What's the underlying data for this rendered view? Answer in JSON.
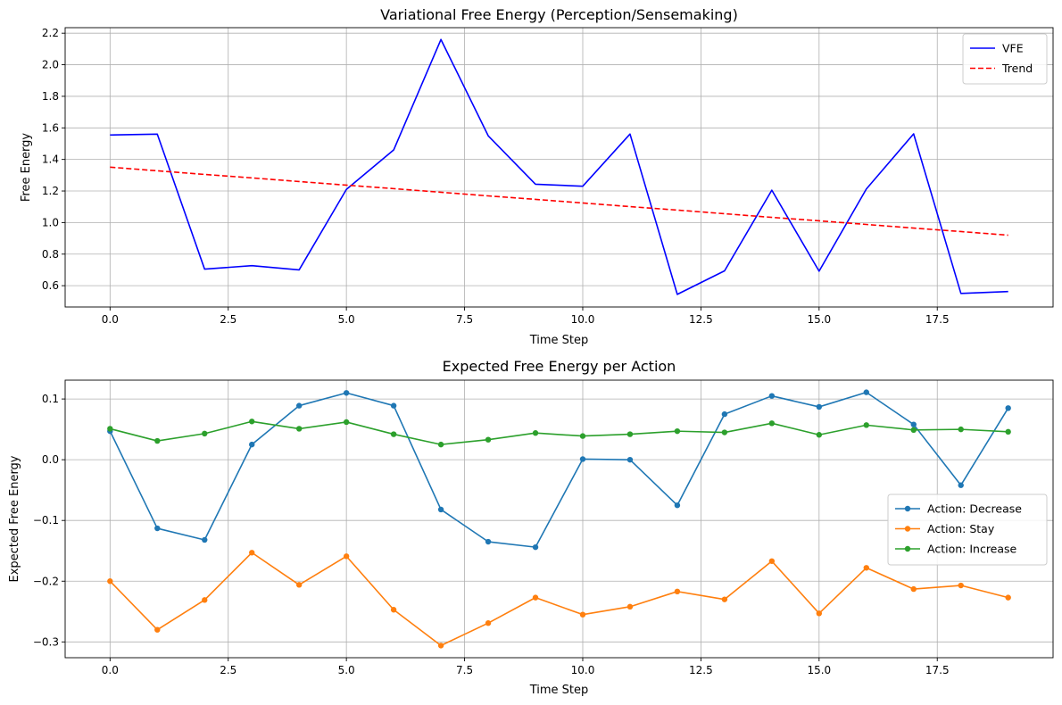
{
  "chart_data": [
    {
      "type": "line",
      "title": "Variational Free Energy (Perception/Sensemaking)",
      "xlabel": "Time Step",
      "ylabel": "Free Energy",
      "xlim": [
        -0.95,
        19.95
      ],
      "ylim": [
        0.465,
        2.235
      ],
      "xticks": [
        0.0,
        2.5,
        5.0,
        7.5,
        10.0,
        12.5,
        15.0,
        17.5
      ],
      "xtick_labels": [
        "0.0",
        "2.5",
        "5.0",
        "7.5",
        "10.0",
        "12.5",
        "15.0",
        "17.5"
      ],
      "yticks": [
        0.6,
        0.8,
        1.0,
        1.2,
        1.4,
        1.6,
        1.8,
        2.0,
        2.2
      ],
      "ytick_labels": [
        "0.6",
        "0.8",
        "1.0",
        "1.2",
        "1.4",
        "1.6",
        "1.8",
        "2.0",
        "2.2"
      ],
      "grid": true,
      "legend_position": "top-right",
      "x": [
        0,
        1,
        2,
        3,
        4,
        5,
        6,
        7,
        8,
        9,
        10,
        11,
        12,
        13,
        14,
        15,
        16,
        17,
        18,
        19
      ],
      "series": [
        {
          "name": "VFE",
          "color": "#0000ff",
          "style": "solid",
          "markers": false,
          "values": [
            1.555,
            1.56,
            0.705,
            0.727,
            0.7,
            1.21,
            1.46,
            2.16,
            1.55,
            1.243,
            1.23,
            1.561,
            0.545,
            0.694,
            1.205,
            0.692,
            1.213,
            1.562,
            0.551,
            0.563
          ]
        },
        {
          "name": "Trend",
          "color": "#ff0000",
          "style": "dashed",
          "markers": false,
          "values": [
            1.351,
            1.328,
            1.305,
            1.283,
            1.26,
            1.237,
            1.215,
            1.192,
            1.169,
            1.147,
            1.124,
            1.101,
            1.079,
            1.056,
            1.033,
            1.011,
            0.988,
            0.965,
            0.943,
            0.92
          ]
        }
      ]
    },
    {
      "type": "line",
      "title": "Expected Free Energy per Action",
      "xlabel": "Time Step",
      "ylabel": "Expected Free Energy",
      "xlim": [
        -0.95,
        19.95
      ],
      "ylim": [
        -0.326,
        0.131
      ],
      "xticks": [
        0.0,
        2.5,
        5.0,
        7.5,
        10.0,
        12.5,
        15.0,
        17.5
      ],
      "xtick_labels": [
        "0.0",
        "2.5",
        "5.0",
        "7.5",
        "10.0",
        "12.5",
        "15.0",
        "17.5"
      ],
      "yticks": [
        -0.3,
        -0.2,
        -0.1,
        0.0,
        0.1
      ],
      "ytick_labels": [
        "−0.3",
        "−0.2",
        "−0.1",
        "0.0",
        "0.1"
      ],
      "grid": true,
      "legend_position": "center-right",
      "x": [
        0,
        1,
        2,
        3,
        4,
        5,
        6,
        7,
        8,
        9,
        10,
        11,
        12,
        13,
        14,
        15,
        16,
        17,
        18,
        19
      ],
      "series": [
        {
          "name": "Action: Decrease",
          "color": "#1f77b4",
          "style": "solid",
          "markers": true,
          "values": [
            0.047,
            -0.113,
            -0.132,
            0.025,
            0.089,
            0.11,
            0.089,
            -0.082,
            -0.135,
            -0.144,
            0.001,
            0.0,
            -0.075,
            0.075,
            0.105,
            0.087,
            0.111,
            0.058,
            -0.042,
            0.085
          ]
        },
        {
          "name": "Action: Stay",
          "color": "#ff7f0e",
          "style": "solid",
          "markers": true,
          "values": [
            -0.2,
            -0.28,
            -0.231,
            -0.153,
            -0.206,
            -0.159,
            -0.247,
            -0.306,
            -0.269,
            -0.227,
            -0.255,
            -0.242,
            -0.217,
            -0.23,
            -0.167,
            -0.253,
            -0.178,
            -0.213,
            -0.207,
            -0.227
          ]
        },
        {
          "name": "Action: Increase",
          "color": "#2ca02c",
          "style": "solid",
          "markers": true,
          "values": [
            0.051,
            0.031,
            0.043,
            0.063,
            0.051,
            0.062,
            0.042,
            0.025,
            0.033,
            0.044,
            0.039,
            0.042,
            0.047,
            0.045,
            0.06,
            0.041,
            0.057,
            0.049,
            0.05,
            0.046
          ]
        }
      ]
    }
  ]
}
